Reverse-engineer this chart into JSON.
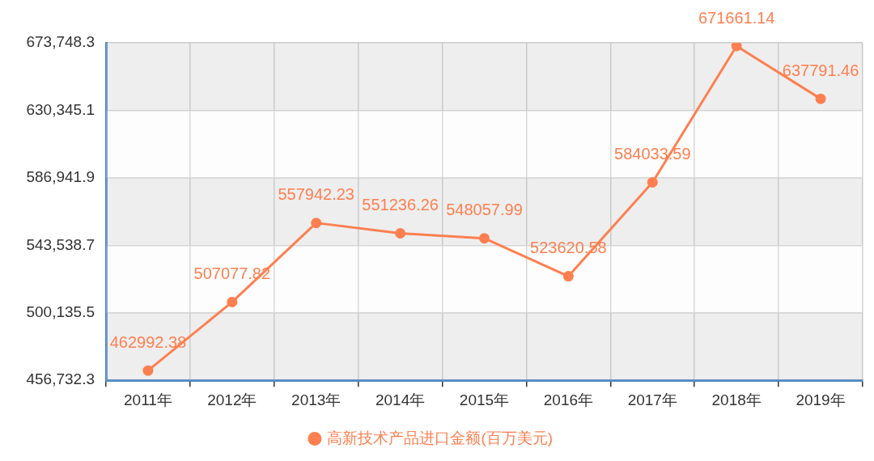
{
  "chart_data": {
    "type": "line",
    "categories": [
      "2011年",
      "2012年",
      "2013年",
      "2014年",
      "2015年",
      "2016年",
      "2017年",
      "2018年",
      "2019年"
    ],
    "series": [
      {
        "name": "高新技术产品进口金额(百万美元)",
        "color": "#ff7f50",
        "values": [
          462992.38,
          507077.82,
          557942.23,
          551236.26,
          548057.99,
          523620.58,
          584033.59,
          671661.14,
          637791.46
        ]
      }
    ],
    "ylim": [
      456732.3,
      673748.3
    ],
    "yticks": [
      {
        "value": 456732.3,
        "label": "456,732.3"
      },
      {
        "value": 500135.5,
        "label": "500,135.5"
      },
      {
        "value": 543538.7,
        "label": "543,538.7"
      },
      {
        "value": 586941.9,
        "label": "586,941.9"
      },
      {
        "value": 630345.1,
        "label": "630,345.1"
      },
      {
        "value": 673748.3,
        "label": "673,748.3"
      }
    ],
    "grid": true,
    "legend": "bottom",
    "marker": "circle",
    "line_style": "solid",
    "data_labels": true
  }
}
